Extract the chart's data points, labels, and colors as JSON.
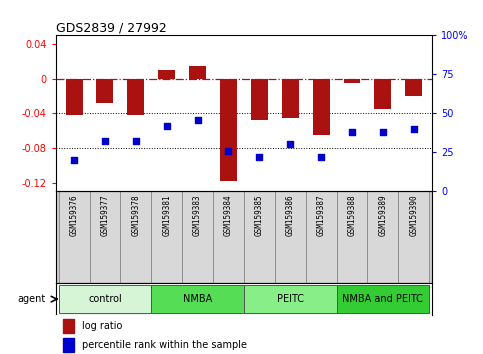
{
  "title": "GDS2839 / 27992",
  "samples": [
    "GSM159376",
    "GSM159377",
    "GSM159378",
    "GSM159381",
    "GSM159383",
    "GSM159384",
    "GSM159385",
    "GSM159386",
    "GSM159387",
    "GSM159388",
    "GSM159389",
    "GSM159390"
  ],
  "log_ratio": [
    -0.042,
    -0.028,
    -0.042,
    0.01,
    0.015,
    -0.118,
    -0.048,
    -0.046,
    -0.065,
    -0.005,
    -0.035,
    -0.02
  ],
  "percentile_rank": [
    20,
    32,
    32,
    42,
    46,
    26,
    22,
    30,
    22,
    38,
    38,
    40
  ],
  "groups": [
    {
      "label": "control",
      "start": 0,
      "end": 3,
      "color": "#d6f5d6"
    },
    {
      "label": "NMBA",
      "start": 3,
      "end": 6,
      "color": "#55dd55"
    },
    {
      "label": "PEITC",
      "start": 6,
      "end": 9,
      "color": "#88ee88"
    },
    {
      "label": "NMBA and PEITC",
      "start": 9,
      "end": 12,
      "color": "#33cc33"
    }
  ],
  "bar_color": "#aa1111",
  "dot_color": "#0000cc",
  "ylim_left": [
    -0.13,
    0.05
  ],
  "ylim_right": [
    0,
    100
  ],
  "yticks_left": [
    -0.12,
    -0.08,
    -0.04,
    0,
    0.04
  ],
  "yticks_right": [
    0,
    25,
    50,
    75,
    100
  ],
  "hlines_dotted": [
    -0.04,
    -0.08
  ],
  "hline_dashdot": 0.0,
  "background_color": "#ffffff",
  "label_bg": "#cccccc",
  "cell_bg": "#d8d8d8"
}
